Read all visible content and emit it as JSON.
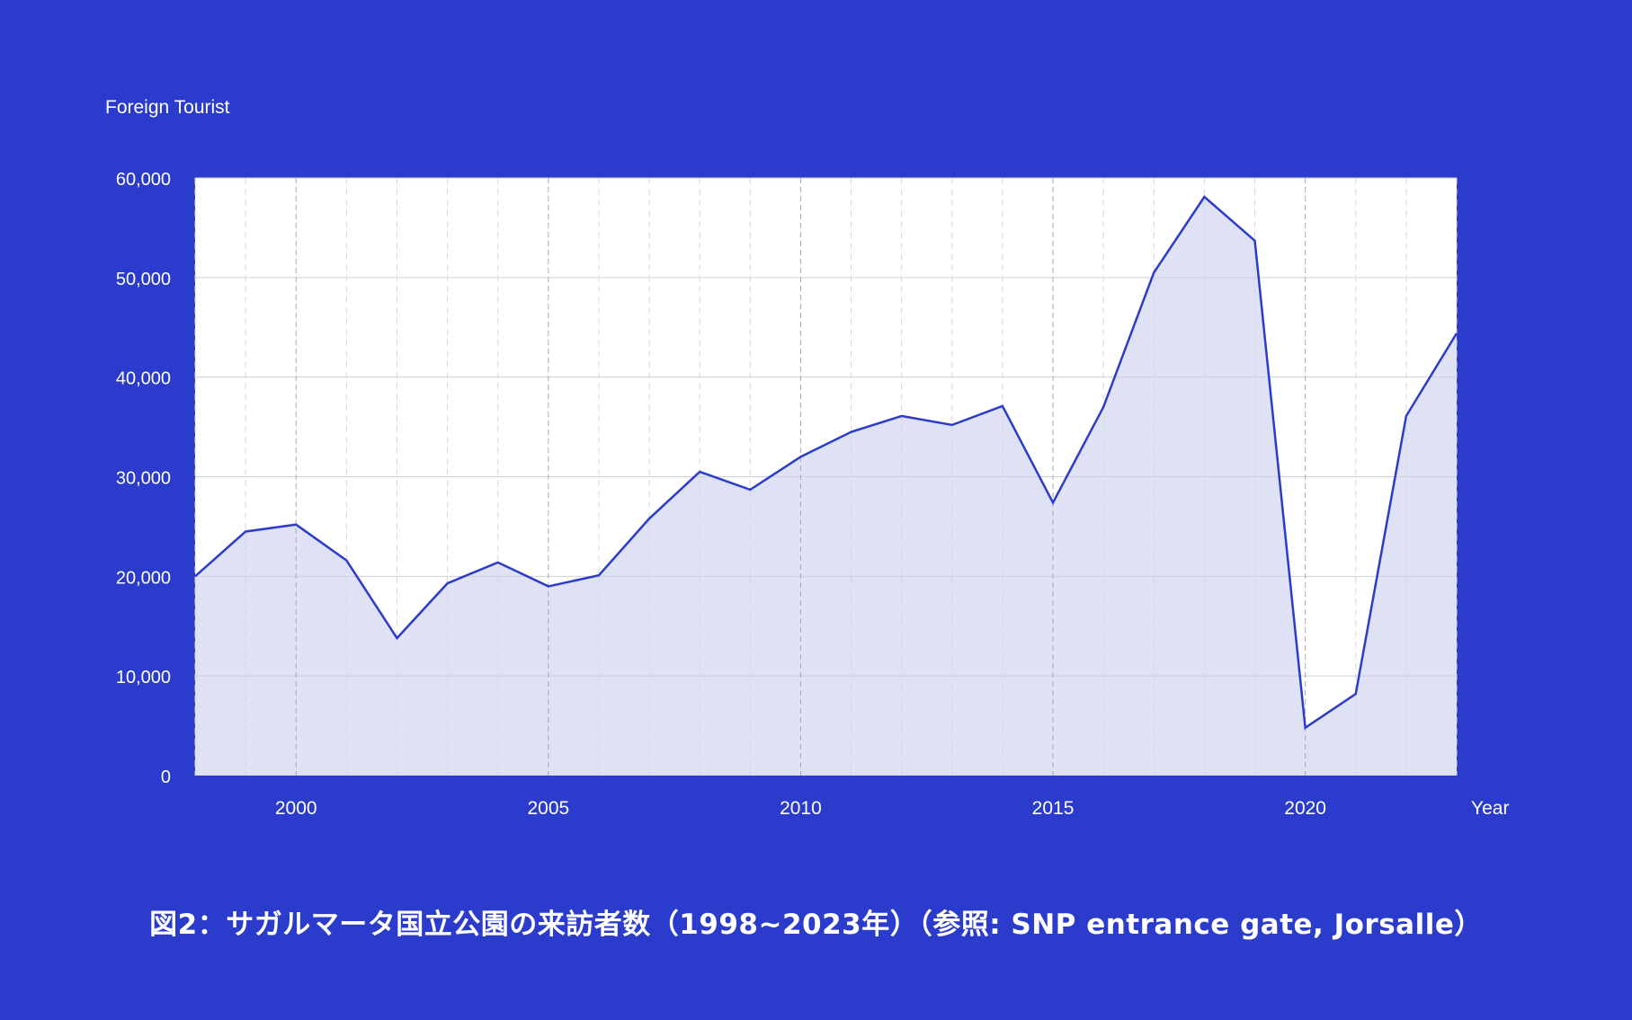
{
  "chart_data": {
    "type": "area",
    "ylabel": "Foreign Tourist",
    "xlabel": "Year",
    "caption": "図2：サガルマータ国立公園の来訪者数（1998~2023年）（参照: SNP entrance gate, Jorsalle）",
    "xlim": [
      1998,
      2023
    ],
    "ylim": [
      0,
      60000
    ],
    "x_ticks": [
      2000,
      2005,
      2010,
      2015,
      2020
    ],
    "x_tick_labels": [
      "2000",
      "2005",
      "2010",
      "2015",
      "2020"
    ],
    "y_ticks": [
      0,
      10000,
      20000,
      30000,
      40000,
      50000,
      60000
    ],
    "y_tick_labels": [
      "0",
      "10,000",
      "20,000",
      "30,000",
      "40,000",
      "50,000",
      "60,000"
    ],
    "grid": true,
    "x": [
      1998,
      1999,
      2000,
      2001,
      2002,
      2003,
      2004,
      2005,
      2006,
      2007,
      2008,
      2009,
      2010,
      2011,
      2012,
      2013,
      2014,
      2015,
      2016,
      2017,
      2018,
      2019,
      2020,
      2021,
      2022,
      2023
    ],
    "series": [
      {
        "values": [
          20000,
          24500,
          25200,
          21600,
          13800,
          19300,
          21400,
          19000,
          20100,
          25800,
          30500,
          28700,
          32000,
          34500,
          36100,
          35200,
          37100,
          27400,
          37000,
          50500,
          58100,
          53700,
          4800,
          8200,
          36100,
          44400
        ]
      }
    ],
    "colors": {
      "background": "#2b3bcc",
      "line": "#2b3bcc",
      "fill": "#dfe1f5",
      "plot_bg": "#ffffff",
      "grid": "#cfcfd8"
    }
  }
}
